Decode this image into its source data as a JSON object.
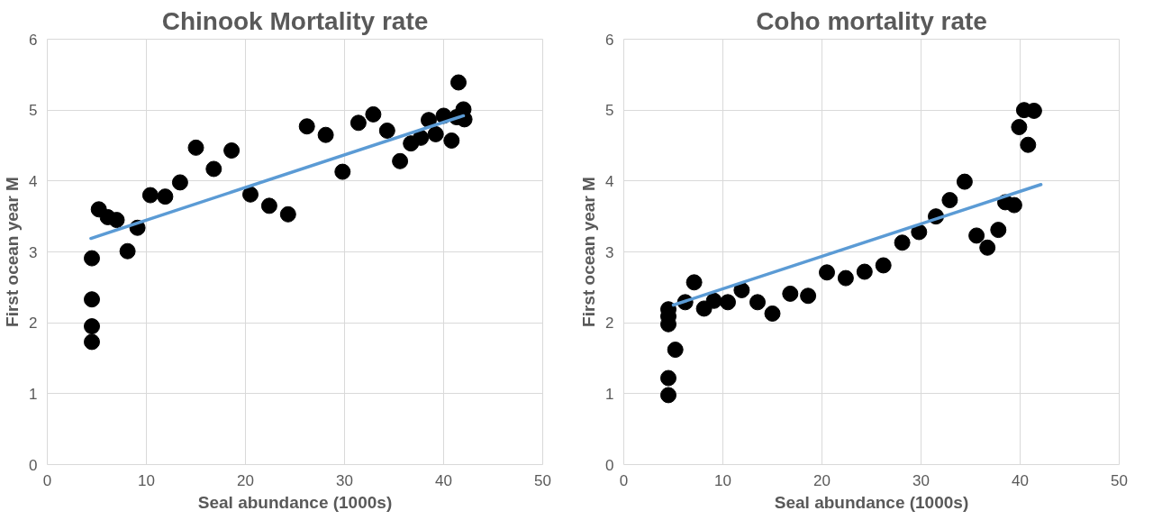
{
  "chart_data": [
    {
      "type": "scatter",
      "title": "Chinook Mortality rate",
      "xlabel": "Seal abundance (1000s)",
      "ylabel": "First ocean year M",
      "xlim": [
        0,
        50
      ],
      "ylim": [
        0,
        6
      ],
      "xticks": [
        0,
        10,
        20,
        30,
        40,
        50
      ],
      "yticks": [
        0,
        1,
        2,
        3,
        4,
        5,
        6
      ],
      "grid": true,
      "series": [
        {
          "marker": "circle",
          "color": "#000000",
          "x": [
            4.5,
            4.5,
            4.5,
            4.5,
            5.2,
            6.1,
            7.0,
            8.1,
            9.1,
            10.4,
            11.9,
            13.4,
            15.0,
            16.8,
            18.6,
            20.5,
            22.4,
            24.3,
            26.2,
            28.1,
            29.8,
            31.4,
            32.9,
            34.3,
            35.6,
            36.7,
            37.7,
            38.5,
            39.2,
            40.0,
            40.8,
            41.3,
            41.5,
            42.0,
            42.1
          ],
          "values": [
            2.91,
            2.33,
            1.95,
            1.73,
            3.6,
            3.49,
            3.45,
            3.01,
            3.34,
            3.8,
            3.78,
            3.98,
            4.47,
            4.17,
            4.43,
            3.81,
            3.65,
            3.53,
            4.77,
            4.65,
            4.13,
            4.82,
            4.94,
            4.71,
            4.28,
            4.53,
            4.61,
            4.86,
            4.66,
            4.92,
            4.57,
            4.9,
            5.39,
            5.01,
            4.87
          ]
        },
        {
          "type": "line",
          "marker": "none",
          "color": "#5b9bd5",
          "x": [
            4.4,
            42.0
          ],
          "values": [
            3.19,
            4.92
          ]
        }
      ]
    },
    {
      "type": "scatter",
      "title": "Coho mortality rate",
      "xlabel": "Seal abundance (1000s)",
      "ylabel": "First ocean year M",
      "xlim": [
        0,
        50
      ],
      "ylim": [
        0,
        6
      ],
      "xticks": [
        0,
        10,
        20,
        30,
        40,
        50
      ],
      "yticks": [
        0,
        1,
        2,
        3,
        4,
        5,
        6
      ],
      "grid": true,
      "series": [
        {
          "marker": "circle",
          "color": "#000000",
          "x": [
            4.5,
            4.5,
            5.2,
            4.5,
            4.5,
            4.5,
            6.2,
            7.1,
            8.1,
            9.1,
            10.5,
            11.9,
            13.5,
            15.0,
            16.8,
            18.6,
            20.5,
            22.4,
            24.3,
            26.2,
            28.1,
            29.8,
            31.5,
            32.9,
            34.4,
            35.6,
            36.7,
            37.8,
            38.5,
            39.4,
            39.9,
            40.4,
            41.4,
            40.8
          ],
          "values": [
            0.98,
            1.22,
            1.62,
            1.98,
            2.09,
            2.19,
            2.29,
            2.57,
            2.2,
            2.31,
            2.29,
            2.46,
            2.29,
            2.13,
            2.41,
            2.38,
            2.71,
            2.63,
            2.72,
            2.81,
            3.13,
            3.28,
            3.5,
            3.73,
            3.99,
            3.23,
            3.06,
            3.31,
            3.7,
            3.66,
            4.76,
            5.0,
            4.99,
            4.51
          ]
        },
        {
          "type": "line",
          "marker": "none",
          "color": "#5b9bd5",
          "x": [
            5.0,
            42.1
          ],
          "values": [
            2.25,
            3.95
          ]
        }
      ]
    }
  ]
}
